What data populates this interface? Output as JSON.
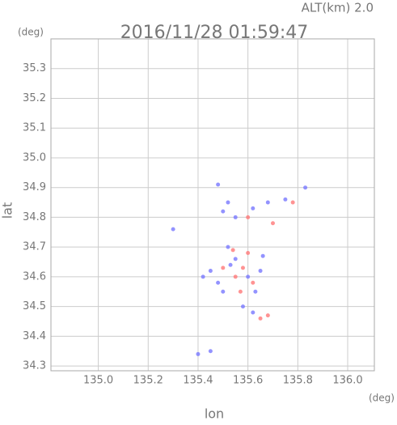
{
  "chart_data": {
    "type": "scatter",
    "title": "2016/11/28 01:59:47",
    "subtitle": "ALT(km) 2.0",
    "x_label": "lon",
    "y_label": "lat",
    "x_unit": "(deg)",
    "y_unit": "(deg)",
    "xlim": [
      134.81,
      136.107
    ],
    "ylim": [
      34.284,
      35.4
    ],
    "xticks": [
      {
        "value": 135.0,
        "label": "135.0"
      },
      135.2,
      135.4,
      135.6,
      135.8,
      {
        "value": 136.0,
        "label": "136.0"
      }
    ],
    "yticks": [
      34.3,
      34.4,
      34.5,
      34.6,
      34.7,
      34.8,
      34.9,
      {
        "value": 35.0,
        "label": "35.0"
      },
      35.1,
      35.2,
      35.3
    ],
    "grid": true,
    "series": [
      {
        "color": "#7878ff",
        "x": [
          135.52,
          135.5,
          135.55,
          135.62,
          135.68,
          135.75,
          135.83,
          135.3,
          135.48,
          135.45,
          135.42,
          135.55,
          135.6,
          135.63,
          135.58,
          135.62,
          135.65,
          135.5,
          135.48,
          135.52,
          135.4,
          135.45,
          135.53,
          135.66
        ],
        "y": [
          34.85,
          34.82,
          34.8,
          34.83,
          34.85,
          34.86,
          34.9,
          34.76,
          34.91,
          34.62,
          34.6,
          34.66,
          34.6,
          34.55,
          34.5,
          34.48,
          34.62,
          34.55,
          34.58,
          34.7,
          34.34,
          34.35,
          34.64,
          34.67
        ]
      },
      {
        "color": "#ff7878",
        "x": [
          135.6,
          135.78,
          135.55,
          135.58,
          135.62,
          135.5,
          135.65,
          135.68,
          135.54,
          135.57,
          135.7,
          135.6
        ],
        "y": [
          34.8,
          34.85,
          34.6,
          34.63,
          34.58,
          34.63,
          34.46,
          34.47,
          34.69,
          34.55,
          34.78,
          34.68
        ]
      }
    ]
  }
}
